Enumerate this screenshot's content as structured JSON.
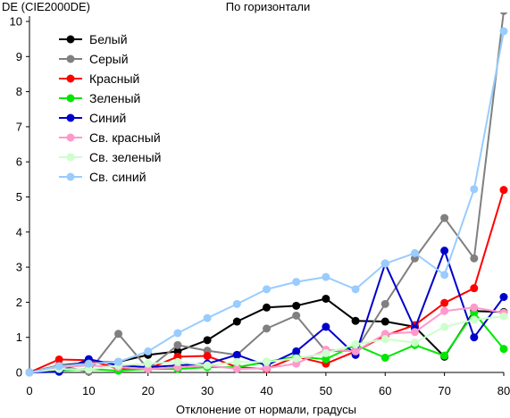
{
  "chart_data": {
    "type": "line",
    "title": "По горизонтали",
    "ylabel": "DE (CIE2000DE)",
    "xlabel": "Отклонение от нормали, градусы",
    "xlim": [
      0,
      80
    ],
    "ylim": [
      0,
      10
    ],
    "xticks": [
      0,
      10,
      20,
      30,
      40,
      50,
      60,
      70,
      80
    ],
    "yticks": [
      0,
      1,
      2,
      3,
      4,
      5,
      6,
      7,
      8,
      9,
      10
    ],
    "grid": false,
    "legend_position": "top-left",
    "x": [
      0,
      5,
      10,
      15,
      20,
      25,
      30,
      35,
      40,
      45,
      50,
      55,
      60,
      65,
      70,
      75,
      80
    ],
    "series": [
      {
        "name": "Белый",
        "color": "#000000",
        "values": [
          0,
          0.2,
          0.28,
          0.3,
          0.5,
          0.6,
          0.92,
          1.45,
          1.85,
          1.9,
          2.1,
          1.47,
          1.45,
          1.3,
          0.45,
          1.75,
          1.72
        ]
      },
      {
        "name": "Серый",
        "color": "#808080",
        "values": [
          0,
          0.2,
          0.02,
          1.1,
          0.1,
          0.78,
          0.62,
          0.5,
          1.25,
          1.62,
          0.6,
          0.62,
          1.95,
          3.25,
          4.4,
          3.25,
          10.3
        ]
      },
      {
        "name": "Красный",
        "color": "#ff0000",
        "values": [
          0,
          0.37,
          0.35,
          0.1,
          0.1,
          0.45,
          0.47,
          0.15,
          0.1,
          0.45,
          0.25,
          0.6,
          1.05,
          1.35,
          1.98,
          2.4,
          5.2
        ]
      },
      {
        "name": "Зеленый",
        "color": "#00e600",
        "values": [
          0,
          0.05,
          0.1,
          0.05,
          0.1,
          0.1,
          0.15,
          0.15,
          0.3,
          0.45,
          0.38,
          0.78,
          0.42,
          0.78,
          0.48,
          1.7,
          0.67
        ]
      },
      {
        "name": "Синий",
        "color": "#0000cc",
        "values": [
          0,
          0.02,
          0.38,
          0.2,
          0.15,
          0.2,
          0.25,
          0.5,
          0.2,
          0.6,
          1.3,
          0.5,
          3.1,
          1.25,
          3.47,
          1.0,
          2.15
        ]
      },
      {
        "name": "Св. красный",
        "color": "#ff99cc",
        "values": [
          0,
          0.15,
          0.2,
          0.15,
          0.1,
          0.15,
          0.2,
          0.1,
          0.12,
          0.25,
          0.65,
          0.6,
          1.1,
          1.15,
          1.75,
          1.85,
          1.7
        ]
      },
      {
        "name": "Св. зеленый",
        "color": "#ccffcc",
        "values": [
          0,
          0.1,
          0.08,
          0.2,
          0.25,
          0.3,
          0.2,
          0.3,
          0.3,
          0.4,
          0.55,
          0.8,
          0.95,
          0.85,
          1.3,
          1.5,
          1.6
        ]
      },
      {
        "name": "Св. синий",
        "color": "#99ccff",
        "values": [
          0,
          0.18,
          0.25,
          0.3,
          0.6,
          1.12,
          1.55,
          1.95,
          2.37,
          2.58,
          2.72,
          2.37,
          3.1,
          3.4,
          2.78,
          5.22,
          9.72
        ]
      }
    ]
  }
}
